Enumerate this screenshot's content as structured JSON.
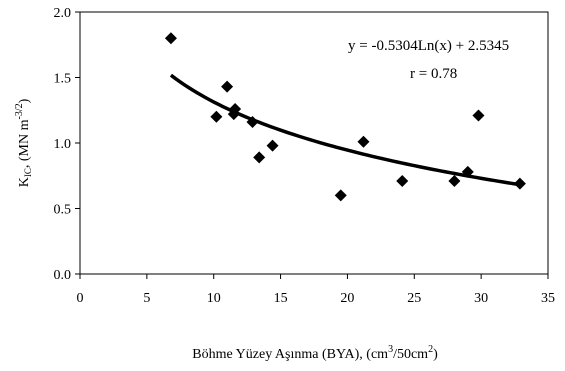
{
  "chart_data": {
    "type": "scatter",
    "xlabel": {
      "main": "Böhme Yüzey Aşınma (BYA), (cm",
      "sup1": "3",
      "mid": "/50cm",
      "sup2": "2",
      "end": ")"
    },
    "ylabel": {
      "main": "K",
      "sub": "IC",
      "rest": ", (MN m",
      "sup": "-3/2",
      "end": ")"
    },
    "xlim": [
      0,
      35
    ],
    "ylim": [
      0.0,
      2.0
    ],
    "xticks": [
      "0",
      "5",
      "10",
      "15",
      "20",
      "25",
      "30",
      "35"
    ],
    "yticks": [
      "0.0",
      "0.5",
      "1.0",
      "1.5",
      "2.0"
    ],
    "grid": false,
    "legend": "none",
    "marker": "diamond",
    "color": "#000000",
    "points": [
      {
        "x": 6.8,
        "y": 1.8
      },
      {
        "x": 10.2,
        "y": 1.2
      },
      {
        "x": 11.0,
        "y": 1.43
      },
      {
        "x": 11.5,
        "y": 1.22
      },
      {
        "x": 11.6,
        "y": 1.26
      },
      {
        "x": 12.9,
        "y": 1.16
      },
      {
        "x": 13.4,
        "y": 0.89
      },
      {
        "x": 14.4,
        "y": 0.98
      },
      {
        "x": 19.5,
        "y": 0.6
      },
      {
        "x": 21.2,
        "y": 1.01
      },
      {
        "x": 24.1,
        "y": 0.71
      },
      {
        "x": 28.0,
        "y": 0.71
      },
      {
        "x": 29.0,
        "y": 0.78
      },
      {
        "x": 29.8,
        "y": 1.21
      },
      {
        "x": 32.9,
        "y": 0.69
      }
    ],
    "trendline": {
      "type": "logarithmic",
      "a": -0.5304,
      "b": 2.5345,
      "x_from": 6.8,
      "x_to": 32.9
    },
    "annotations": {
      "equation": "y = -0.5304Ln(x) + 2.5345",
      "r_value": "r  = 0.78"
    }
  }
}
